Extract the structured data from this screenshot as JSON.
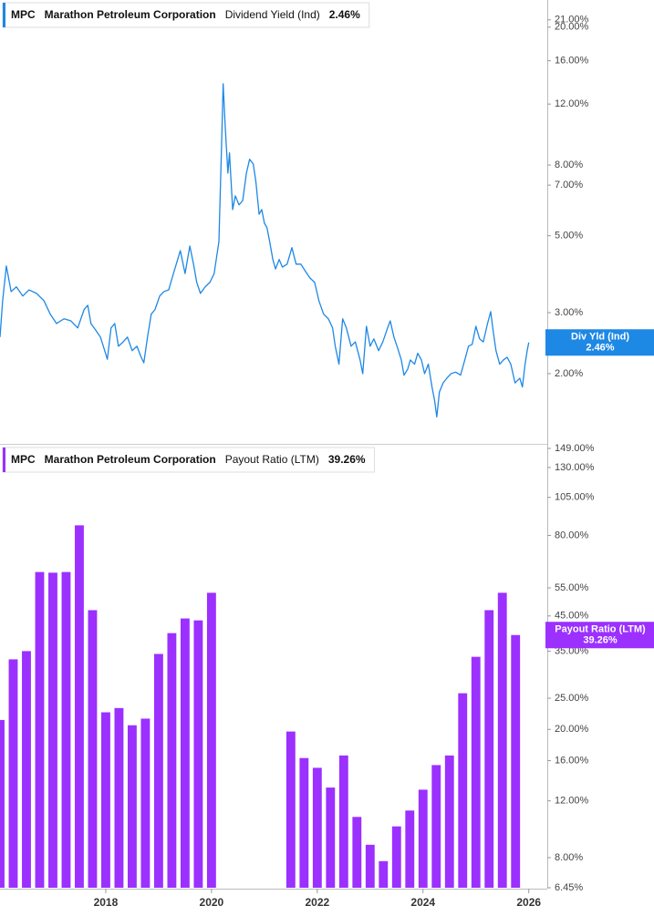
{
  "chart_data": [
    {
      "type": "line",
      "ticker": "MPC",
      "company": "Marathon Petroleum Corporation",
      "metric": "Dividend Yield (Ind)",
      "flag_name": "Div Yld (Ind)",
      "current": 2.46,
      "current_label": "2.46%",
      "color": "#1e88e5",
      "log_scale": true,
      "xlim": [
        2016,
        2026.35
      ],
      "ylim": [
        1.254,
        23.96
      ],
      "yticks": [
        {
          "value": 2,
          "label": "2.00%"
        },
        {
          "value": 3,
          "label": "3.00%"
        },
        {
          "value": 5,
          "label": "5.00%"
        },
        {
          "value": 7,
          "label": "7.00%"
        },
        {
          "value": 8,
          "label": "8.00%"
        },
        {
          "value": 12,
          "label": "12.00%"
        },
        {
          "value": 16,
          "label": "16.00%"
        },
        {
          "value": 20,
          "label": "20.00%"
        },
        {
          "value": 21,
          "label": "21.00%"
        }
      ],
      "x": [
        2016.0,
        2016.05,
        2016.12,
        2016.21,
        2016.31,
        2016.43,
        2016.55,
        2016.69,
        2016.83,
        2016.95,
        2017.07,
        2017.21,
        2017.34,
        2017.47,
        2017.59,
        2017.66,
        2017.72,
        2017.81,
        2017.9,
        2017.98,
        2018.03,
        2018.1,
        2018.17,
        2018.24,
        2018.33,
        2018.41,
        2018.5,
        2018.59,
        2018.67,
        2018.72,
        2018.79,
        2018.86,
        2018.93,
        2019.02,
        2019.1,
        2019.19,
        2019.28,
        2019.36,
        2019.41,
        2019.5,
        2019.59,
        2019.66,
        2019.72,
        2019.79,
        2019.88,
        2019.97,
        2020.05,
        2020.14,
        2020.19,
        2020.22,
        2020.26,
        2020.31,
        2020.34,
        2020.4,
        2020.45,
        2020.52,
        2020.59,
        2020.66,
        2020.72,
        2020.79,
        2020.84,
        2020.9,
        2020.95,
        2021.0,
        2021.05,
        2021.1,
        2021.16,
        2021.21,
        2021.28,
        2021.34,
        2021.43,
        2021.52,
        2021.6,
        2021.69,
        2021.78,
        2021.86,
        2021.95,
        2022.03,
        2022.12,
        2022.21,
        2022.29,
        2022.34,
        2022.41,
        2022.48,
        2022.55,
        2022.64,
        2022.72,
        2022.81,
        2022.86,
        2022.93,
        2023.0,
        2023.07,
        2023.16,
        2023.24,
        2023.33,
        2023.38,
        2023.45,
        2023.52,
        2023.59,
        2023.64,
        2023.71,
        2023.76,
        2023.84,
        2023.9,
        2023.97,
        2024.03,
        2024.1,
        2024.17,
        2024.22,
        2024.26,
        2024.31,
        2024.38,
        2024.45,
        2024.53,
        2024.62,
        2024.71,
        2024.79,
        2024.86,
        2024.93,
        2025.0,
        2025.07,
        2025.14,
        2025.22,
        2025.28,
        2025.33,
        2025.38,
        2025.45,
        2025.52,
        2025.59,
        2025.66,
        2025.74,
        2025.83,
        2025.88,
        2025.93,
        2025.97,
        2026.0
      ],
      "values": [
        2.55,
        3.25,
        4.09,
        3.45,
        3.56,
        3.35,
        3.49,
        3.41,
        3.25,
        2.97,
        2.79,
        2.88,
        2.84,
        2.71,
        3.06,
        3.15,
        2.79,
        2.67,
        2.55,
        2.33,
        2.2,
        2.71,
        2.79,
        2.4,
        2.47,
        2.55,
        2.33,
        2.4,
        2.23,
        2.15,
        2.55,
        2.97,
        3.06,
        3.35,
        3.45,
        3.49,
        3.89,
        4.27,
        4.53,
        3.89,
        4.67,
        4.14,
        3.67,
        3.41,
        3.56,
        3.67,
        3.89,
        4.81,
        9.1,
        13.73,
        10.27,
        7.58,
        8.67,
        5.95,
        6.52,
        6.14,
        6.32,
        7.58,
        8.31,
        8.06,
        7.14,
        5.77,
        5.95,
        5.44,
        5.27,
        4.81,
        4.27,
        4.01,
        4.27,
        4.06,
        4.14,
        4.62,
        4.14,
        4.14,
        3.94,
        3.78,
        3.67,
        3.25,
        2.97,
        2.88,
        2.71,
        2.4,
        2.13,
        2.88,
        2.71,
        2.4,
        2.47,
        2.19,
        2.0,
        2.74,
        2.4,
        2.52,
        2.33,
        2.47,
        2.71,
        2.84,
        2.55,
        2.37,
        2.19,
        1.98,
        2.06,
        2.19,
        2.13,
        2.29,
        2.19,
        2.0,
        2.13,
        1.83,
        1.67,
        1.5,
        1.77,
        1.88,
        1.94,
        2.0,
        2.02,
        1.98,
        2.19,
        2.4,
        2.43,
        2.74,
        2.52,
        2.47,
        2.79,
        3.02,
        2.63,
        2.33,
        2.13,
        2.19,
        2.23,
        2.13,
        1.88,
        1.94,
        1.83,
        2.13,
        2.33,
        2.46
      ]
    },
    {
      "type": "bar",
      "ticker": "MPC",
      "company": "Marathon Petroleum Corporation",
      "metric": "Payout Ratio (LTM)",
      "flag_name": "Payout Ratio (LTM)",
      "current": 39.26,
      "current_label": "39.26%",
      "color": "#9b30ff",
      "log_scale": true,
      "xlim": [
        2016,
        2026.35
      ],
      "ylim": [
        6.45,
        149
      ],
      "xticks": [
        2018,
        2020,
        2022,
        2024,
        2026
      ],
      "yticks": [
        {
          "value": 6.45,
          "label": "6.45%"
        },
        {
          "value": 8,
          "label": "8.00%"
        },
        {
          "value": 12,
          "label": "12.00%"
        },
        {
          "value": 16,
          "label": "16.00%"
        },
        {
          "value": 20,
          "label": "20.00%"
        },
        {
          "value": 25,
          "label": "25.00%"
        },
        {
          "value": 35,
          "label": "35.00%"
        },
        {
          "value": 45,
          "label": "45.00%"
        },
        {
          "value": 55,
          "label": "55.00%"
        },
        {
          "value": 80,
          "label": "80.00%"
        },
        {
          "value": 105,
          "label": "105.00%"
        },
        {
          "value": 130,
          "label": "130.00%"
        },
        {
          "value": 149,
          "label": "149.00%"
        }
      ],
      "x": [
        2016.0,
        2016.25,
        2016.5,
        2016.75,
        2017.0,
        2017.25,
        2017.5,
        2017.75,
        2018.0,
        2018.25,
        2018.5,
        2018.75,
        2019.0,
        2019.25,
        2019.5,
        2019.75,
        2020.0,
        2021.5,
        2021.75,
        2022.0,
        2022.25,
        2022.5,
        2022.75,
        2023.0,
        2023.25,
        2023.5,
        2023.75,
        2024.0,
        2024.25,
        2024.5,
        2024.75,
        2025.0,
        2025.25,
        2025.5,
        2025.75
      ],
      "values": [
        21.4,
        33.0,
        35.0,
        61.6,
        61.3,
        61.6,
        86.0,
        46.9,
        22.6,
        23.3,
        20.6,
        21.6,
        34.3,
        39.8,
        44.2,
        43.6,
        53.1,
        19.7,
        16.3,
        15.2,
        13.2,
        16.6,
        10.7,
        8.77,
        7.8,
        10.0,
        11.2,
        13.0,
        15.5,
        16.6,
        25.9,
        33.6,
        46.9,
        53.1,
        39.26
      ]
    }
  ]
}
